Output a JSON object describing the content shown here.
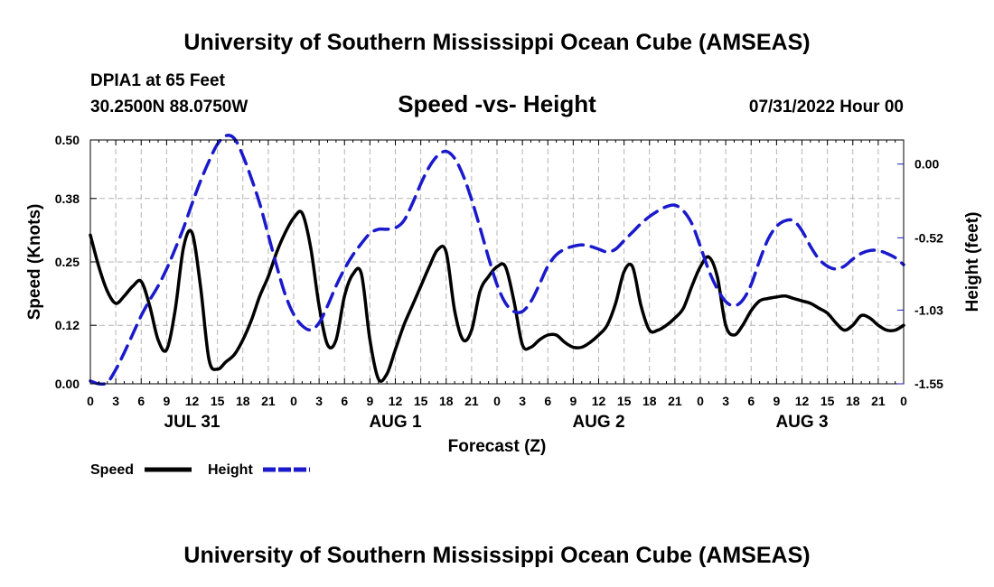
{
  "header": {
    "title": "University of Southern Mississippi Ocean Cube (AMSEAS)",
    "station": "DPIA1 at 65 Feet",
    "coords": "30.2500N  88.0750W",
    "subtitle": "Speed -vs- Height",
    "date": "07/31/2022 Hour 00"
  },
  "footer": {
    "title": "University of Southern Mississippi Ocean Cube (AMSEAS)"
  },
  "legend": {
    "speed_label": "Speed",
    "height_label": "Height",
    "speed_color": "#000000",
    "height_color": "#1a1acc"
  },
  "chart_data": {
    "type": "line",
    "title": "Speed -vs- Height",
    "xlabel": "Forecast (Z)",
    "ylabel": "Speed (Knots)",
    "y2label": "Height (feet)",
    "x_unit": "hours from 07/31/2022 00Z",
    "xlim": [
      0,
      96
    ],
    "ylim": [
      0,
      0.5
    ],
    "y2lim": [
      -1.55,
      0.17
    ],
    "x_ticks": [
      0,
      3,
      6,
      9,
      12,
      15,
      18,
      21,
      24,
      27,
      30,
      33,
      36,
      39,
      42,
      45,
      48,
      51,
      54,
      57,
      60,
      63,
      66,
      69,
      72,
      75,
      78,
      81,
      84,
      87,
      90,
      93,
      96
    ],
    "x_tick_labels": [
      "0",
      "3",
      "6",
      "9",
      "12",
      "15",
      "18",
      "21",
      "0",
      "3",
      "6",
      "9",
      "12",
      "15",
      "18",
      "21",
      "0",
      "3",
      "6",
      "9",
      "12",
      "15",
      "18",
      "21",
      "0",
      "3",
      "6",
      "9",
      "12",
      "15",
      "18",
      "21",
      "0"
    ],
    "date_labels": [
      {
        "x": 12,
        "label": "JUL 31"
      },
      {
        "x": 36,
        "label": "AUG 1"
      },
      {
        "x": 60,
        "label": "AUG 2"
      },
      {
        "x": 84,
        "label": "AUG 3"
      }
    ],
    "y_ticks": [
      0.0,
      0.12,
      0.25,
      0.38,
      0.5
    ],
    "y_tick_labels": [
      "0.00",
      "0.12",
      "0.25",
      "0.38",
      "0.50"
    ],
    "y2_ticks": [
      0.0,
      -0.52,
      -1.03,
      -1.55
    ],
    "y2_tick_labels": [
      "0.00",
      "-0.52",
      "-1.03",
      "-1.55"
    ],
    "grid": true,
    "legend": "bottom-left",
    "series": [
      {
        "name": "Speed",
        "axis": "left",
        "color": "#000000",
        "style": "solid",
        "x": [
          0,
          1,
          2,
          3,
          4,
          5,
          6,
          7,
          8,
          9,
          10,
          11,
          12,
          13,
          14,
          15,
          16,
          17,
          18,
          19,
          20,
          21,
          22,
          23,
          24,
          25,
          26,
          27,
          28,
          29,
          30,
          31,
          32,
          33,
          34,
          35,
          36,
          37,
          38,
          39,
          40,
          41,
          42,
          43,
          44,
          45,
          46,
          47,
          48,
          49,
          50,
          51,
          52,
          53,
          54,
          55,
          56,
          57,
          58,
          59,
          60,
          61,
          62,
          63,
          64,
          65,
          66,
          67,
          68,
          69,
          70,
          71,
          72,
          73,
          74,
          75,
          76,
          77,
          78,
          79,
          80,
          81,
          82,
          83,
          84,
          85,
          86,
          87,
          88,
          89,
          90,
          91,
          92,
          93,
          94,
          95,
          96
        ],
        "y": [
          0.305,
          0.24,
          0.19,
          0.165,
          0.18,
          0.2,
          0.21,
          0.16,
          0.09,
          0.07,
          0.15,
          0.28,
          0.31,
          0.2,
          0.05,
          0.03,
          0.045,
          0.06,
          0.09,
          0.13,
          0.18,
          0.22,
          0.27,
          0.31,
          0.34,
          0.35,
          0.28,
          0.16,
          0.08,
          0.09,
          0.18,
          0.225,
          0.225,
          0.09,
          0.01,
          0.02,
          0.07,
          0.12,
          0.16,
          0.2,
          0.24,
          0.275,
          0.27,
          0.15,
          0.09,
          0.11,
          0.19,
          0.22,
          0.24,
          0.24,
          0.17,
          0.08,
          0.075,
          0.09,
          0.1,
          0.1,
          0.085,
          0.075,
          0.075,
          0.085,
          0.1,
          0.12,
          0.165,
          0.23,
          0.24,
          0.16,
          0.11,
          0.11,
          0.12,
          0.135,
          0.155,
          0.2,
          0.24,
          0.26,
          0.22,
          0.12,
          0.1,
          0.12,
          0.15,
          0.17,
          0.175,
          0.178,
          0.18,
          0.175,
          0.17,
          0.165,
          0.155,
          0.145,
          0.125,
          0.11,
          0.12,
          0.14,
          0.135,
          0.12,
          0.11,
          0.11,
          0.12
        ]
      },
      {
        "name": "Height",
        "axis": "right",
        "color": "#1a1acc",
        "style": "dashed",
        "x": [
          0,
          1,
          2,
          3,
          4,
          5,
          6,
          7,
          8,
          9,
          10,
          11,
          12,
          13,
          14,
          15,
          16,
          17,
          18,
          19,
          20,
          21,
          22,
          23,
          24,
          25,
          26,
          27,
          28,
          29,
          30,
          31,
          32,
          33,
          34,
          35,
          36,
          37,
          38,
          39,
          40,
          41,
          42,
          43,
          44,
          45,
          46,
          47,
          48,
          49,
          50,
          51,
          52,
          53,
          54,
          55,
          56,
          57,
          58,
          59,
          60,
          61,
          62,
          63,
          64,
          65,
          66,
          67,
          68,
          69,
          70,
          71,
          72,
          73,
          74,
          75,
          76,
          77,
          78,
          79,
          80,
          81,
          82,
          83,
          84,
          85,
          86,
          87,
          88,
          89,
          90,
          91,
          92,
          93,
          94,
          95,
          96
        ],
        "y": [
          -1.53,
          -1.55,
          -1.54,
          -1.45,
          -1.33,
          -1.2,
          -1.07,
          -0.96,
          -0.86,
          -0.74,
          -0.6,
          -0.45,
          -0.28,
          -0.12,
          0.02,
          0.14,
          0.2,
          0.18,
          0.06,
          -0.1,
          -0.28,
          -0.5,
          -0.72,
          -0.92,
          -1.06,
          -1.14,
          -1.17,
          -1.12,
          -1.0,
          -0.86,
          -0.74,
          -0.64,
          -0.56,
          -0.49,
          -0.46,
          -0.46,
          -0.45,
          -0.4,
          -0.28,
          -0.14,
          -0.02,
          0.06,
          0.09,
          0.04,
          -0.08,
          -0.25,
          -0.45,
          -0.66,
          -0.85,
          -0.98,
          -1.04,
          -1.04,
          -0.97,
          -0.85,
          -0.72,
          -0.64,
          -0.6,
          -0.58,
          -0.57,
          -0.58,
          -0.6,
          -0.62,
          -0.6,
          -0.54,
          -0.48,
          -0.42,
          -0.37,
          -0.33,
          -0.3,
          -0.29,
          -0.33,
          -0.42,
          -0.58,
          -0.75,
          -0.88,
          -0.97,
          -1.0,
          -0.96,
          -0.85,
          -0.68,
          -0.53,
          -0.44,
          -0.4,
          -0.4,
          -0.47,
          -0.58,
          -0.67,
          -0.72,
          -0.74,
          -0.72,
          -0.67,
          -0.63,
          -0.61,
          -0.61,
          -0.63,
          -0.66,
          -0.71
        ]
      }
    ]
  }
}
